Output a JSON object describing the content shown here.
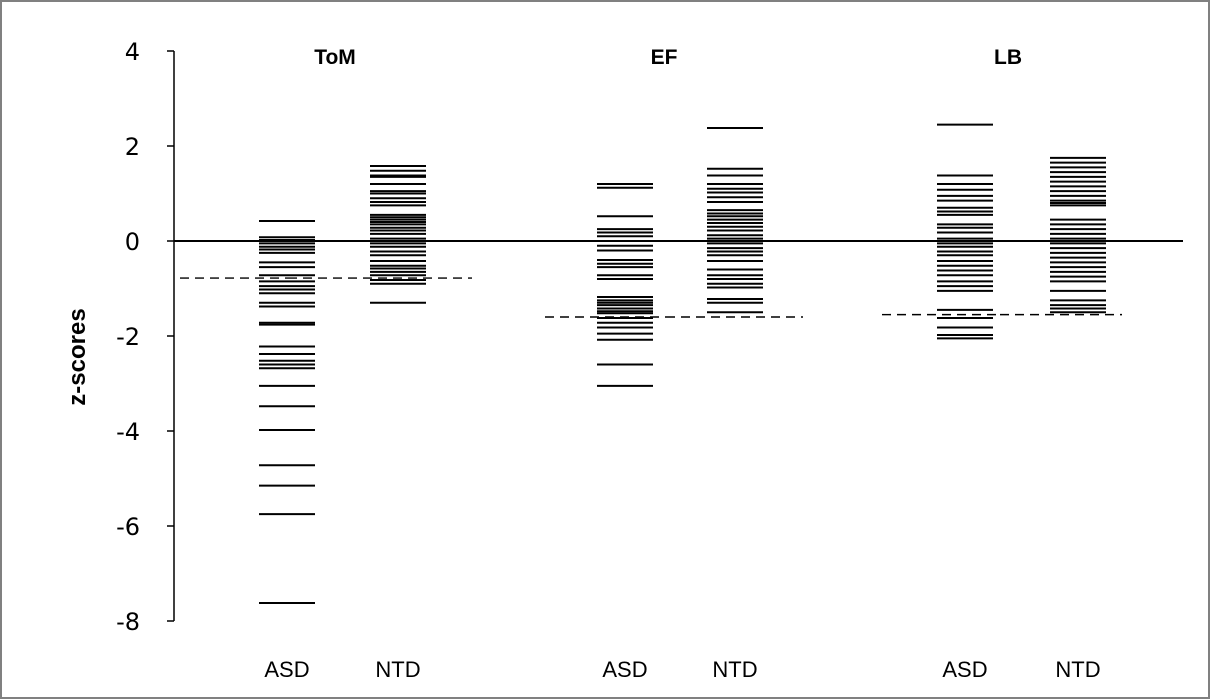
{
  "chart_data": {
    "type": "scatter",
    "title": "",
    "xlabel": "",
    "ylabel": "z-scores",
    "ylim": [
      -8,
      4
    ],
    "yticks": [
      4,
      2,
      0,
      -2,
      -4,
      -6,
      -8
    ],
    "reference_line_y": 0,
    "panels": [
      {
        "title": "ToM",
        "groups": [
          {
            "name": "ASD",
            "cutoff": -0.78,
            "values": [
              0.42,
              0.08,
              0.02,
              -0.05,
              -0.12,
              -0.18,
              -0.25,
              -0.45,
              -0.55,
              -0.72,
              -0.85,
              -0.95,
              -1.02,
              -1.1,
              -1.3,
              -1.38,
              -1.72,
              -1.76,
              -2.22,
              -2.38,
              -2.52,
              -2.6,
              -2.68,
              -3.05,
              -3.48,
              -3.98,
              -4.72,
              -5.15,
              -5.75,
              -7.62
            ]
          },
          {
            "name": "NTD",
            "cutoff": -0.78,
            "values": [
              1.58,
              1.48,
              1.38,
              1.35,
              1.2,
              1.05,
              1.0,
              0.9,
              0.82,
              0.75,
              0.55,
              0.5,
              0.45,
              0.4,
              0.35,
              0.28,
              0.22,
              0.15,
              0.05,
              -0.05,
              -0.12,
              -0.22,
              -0.3,
              -0.42,
              -0.52,
              -0.58,
              -0.65,
              -0.72,
              -0.82,
              -0.9,
              -1.3
            ]
          }
        ]
      },
      {
        "title": "EF",
        "groups": [
          {
            "name": "ASD",
            "cutoff": -1.6,
            "values": [
              1.2,
              1.12,
              0.52,
              0.25,
              0.18,
              0.1,
              -0.1,
              -0.2,
              -0.4,
              -0.48,
              -0.55,
              -0.72,
              -0.8,
              -1.18,
              -1.25,
              -1.3,
              -1.35,
              -1.42,
              -1.48,
              -1.52,
              -1.62,
              -1.72,
              -1.82,
              -1.95,
              -2.08,
              -2.6,
              -3.05
            ]
          },
          {
            "name": "NTD",
            "cutoff": -1.6,
            "values": [
              2.38,
              1.52,
              1.38,
              1.2,
              1.1,
              1.02,
              0.92,
              0.82,
              0.65,
              0.58,
              0.52,
              0.45,
              0.38,
              0.3,
              0.22,
              0.12,
              0.05,
              -0.05,
              -0.15,
              -0.22,
              -0.3,
              -0.42,
              -0.6,
              -0.72,
              -0.8,
              -0.9,
              -0.98,
              -1.22,
              -1.3,
              -1.5
            ]
          }
        ]
      },
      {
        "title": "LB",
        "groups": [
          {
            "name": "ASD",
            "cutoff": -1.55,
            "values": [
              2.45,
              1.38,
              1.2,
              1.08,
              0.95,
              0.85,
              0.7,
              0.62,
              0.55,
              0.35,
              0.28,
              0.18,
              0.05,
              -0.05,
              -0.12,
              -0.22,
              -0.3,
              -0.42,
              -0.52,
              -0.62,
              -0.72,
              -0.85,
              -0.95,
              -1.05,
              -1.45,
              -1.62,
              -1.82,
              -1.98,
              -2.05
            ]
          },
          {
            "name": "NTD",
            "cutoff": -1.55,
            "values": [
              1.75,
              1.65,
              1.55,
              1.45,
              1.35,
              1.25,
              1.15,
              1.05,
              0.95,
              0.85,
              0.8,
              0.75,
              0.45,
              0.35,
              0.25,
              0.15,
              0.05,
              -0.05,
              -0.15,
              -0.25,
              -0.35,
              -0.45,
              -0.55,
              -0.65,
              -0.75,
              -0.85,
              -1.05,
              -1.25,
              -1.35,
              -1.42,
              -1.5
            ]
          }
        ]
      }
    ]
  }
}
